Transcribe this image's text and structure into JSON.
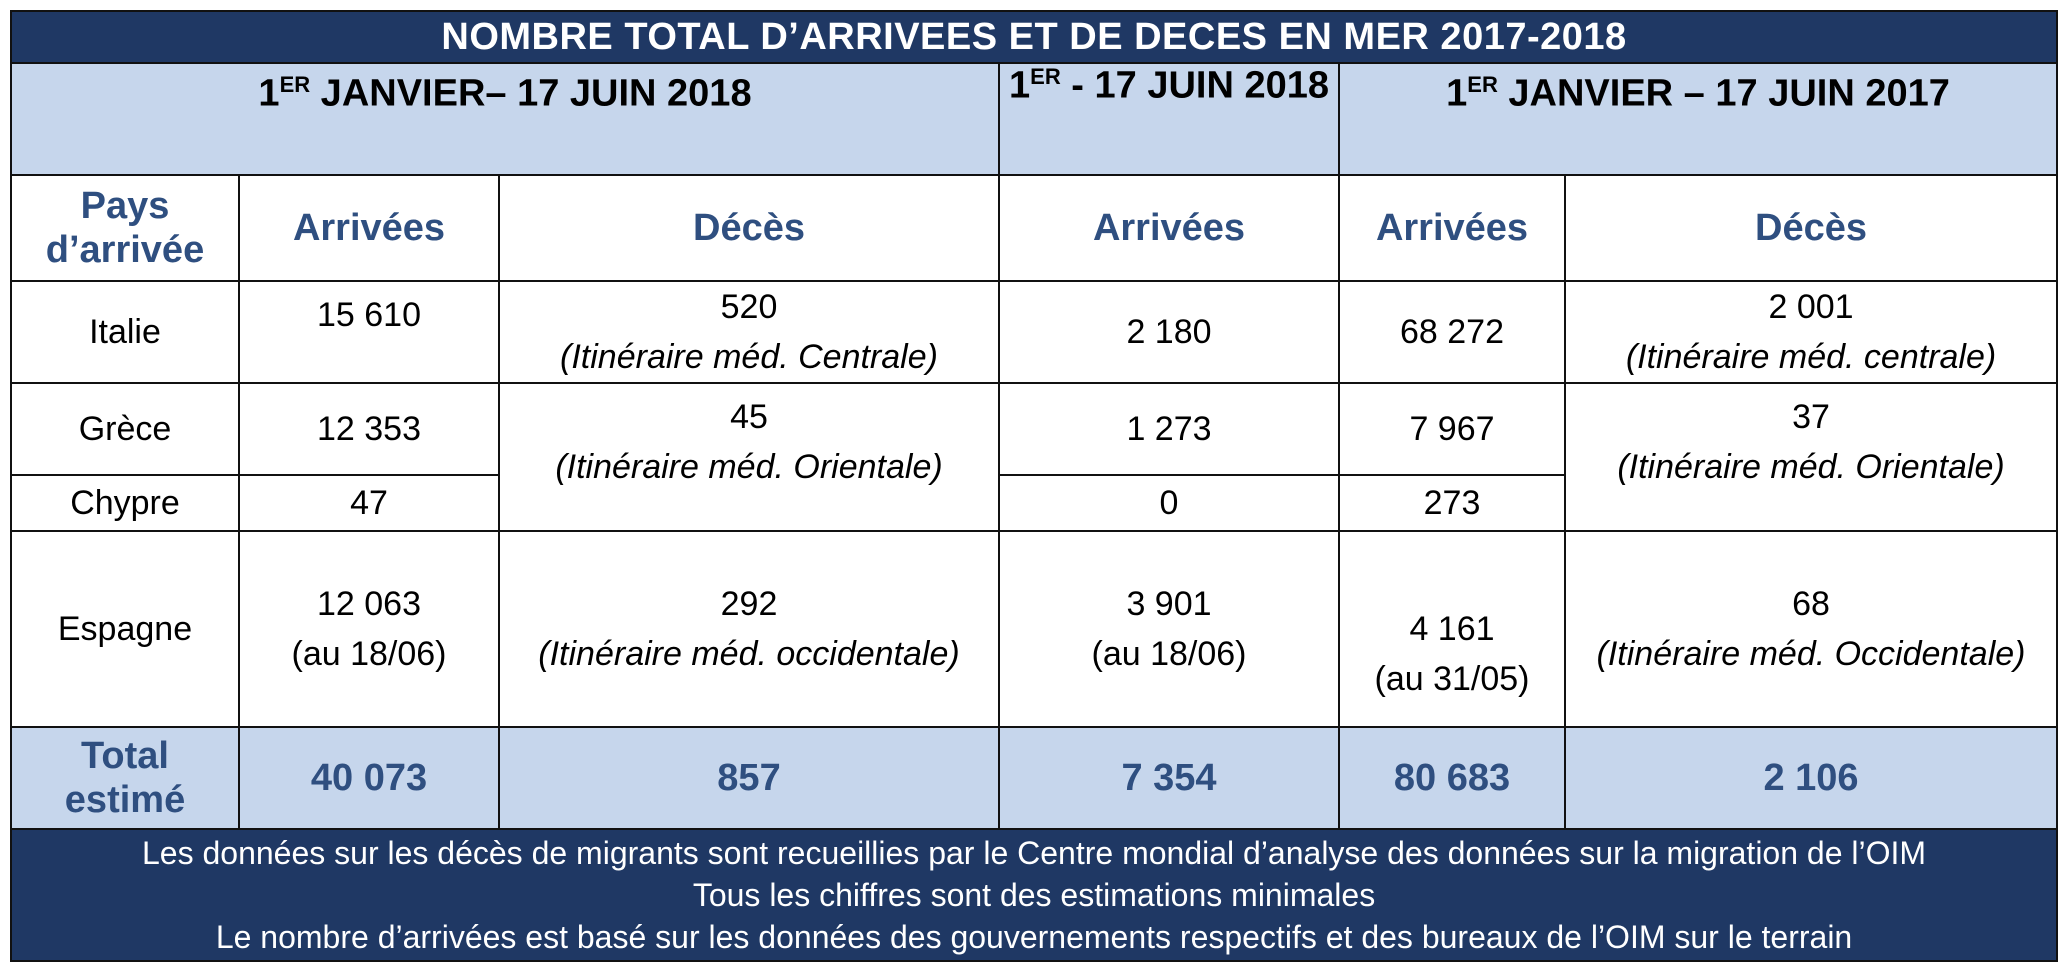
{
  "title": "NOMBRE TOTAL D’ARRIVEES ET DE DECES EN MER 2017-2018",
  "periods": [
    {
      "pre": "1",
      "sup": "ER",
      "post": " JANVIER– 17 JUIN 2018"
    },
    {
      "pre": "1",
      "sup": "ER",
      "post": " - 17 JUIN 2018"
    },
    {
      "pre": "1",
      "sup": "ER",
      "post": " JANVIER – 17 JUIN 2017"
    }
  ],
  "headers": {
    "country": "Pays d’arrivée",
    "arrivals_2018": "Arrivées",
    "deaths_2018": "Décès",
    "arrivals_mid": "Arrivées",
    "arrivals_2017": "Arrivées",
    "deaths_2017": "Décès"
  },
  "rows": {
    "italie": {
      "country": "Italie",
      "arr2018": "15 610",
      "dec2018": "520",
      "dec2018_route": "(Itinéraire méd. Centrale)",
      "arrmid": "2 180",
      "arr2017": "68 272",
      "dec2017": "2 001",
      "dec2017_route": "(Itinéraire méd. centrale)"
    },
    "grece": {
      "country": "Grèce",
      "arr2018": "12 353",
      "dec2018": "45",
      "dec2018_route": "(Itinéraire méd. Orientale)",
      "arrmid": "1 273",
      "arr2017": "7 967",
      "dec2017": "37",
      "dec2017_route": "(Itinéraire méd. Orientale)"
    },
    "chypre": {
      "country": "Chypre",
      "arr2018": "47",
      "arrmid": "0",
      "arr2017": "273"
    },
    "espagne": {
      "country": "Espagne",
      "arr2018": "12 063",
      "arr2018_note": "(au 18/06)",
      "dec2018": "292",
      "dec2018_route": "(Itinéraire méd. occidentale)",
      "arrmid": "3 901",
      "arrmid_note": "(au 18/06)",
      "arr2017": "4 161",
      "arr2017_note": "(au 31/05)",
      "dec2017": "68",
      "dec2017_route": "(Itinéraire méd. Occidentale)"
    }
  },
  "total": {
    "label": "Total estimé",
    "arr2018": "40 073",
    "dec2018": "857",
    "arrmid": "7 354",
    "arr2017": "80 683",
    "dec2017": "2 106"
  },
  "footer": [
    "Les données sur les décès de migrants sont recueillies par le Centre mondial d’analyse des données sur la migration de l’OIM",
    "Tous les chiffres sont des estimations minimales",
    "Le nombre d’arrivées est basé sur les données des gouvernements respectifs et des bureaux de l’OIM sur le terrain"
  ],
  "colors": {
    "title_bg": "#1f3864",
    "band_bg": "#c6d6ec",
    "header_text": "#2f4f80"
  }
}
